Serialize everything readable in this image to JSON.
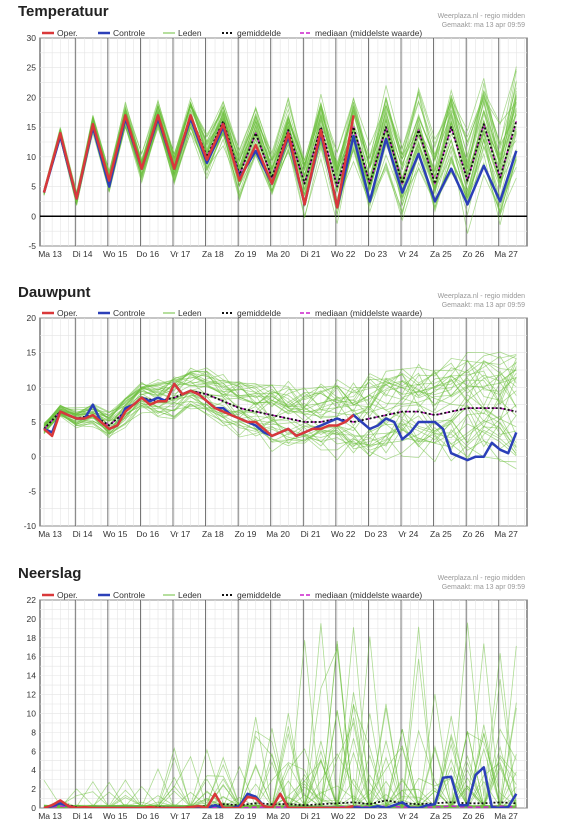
{
  "chart_data": [
    {
      "type": "line",
      "title": "Temperatuur",
      "credit": "Weerplaza.nl - regio midden",
      "created": "Gemaakt: ma 13 apr 09:59",
      "ylim": [
        -5,
        30
      ],
      "yticks": [
        -5,
        0,
        5,
        10,
        15,
        20,
        25,
        30
      ],
      "categories": [
        "Ma 13",
        "Di 14",
        "Wo 15",
        "Do 16",
        "Vr 17",
        "Za 18",
        "Zo 19",
        "Ma 20",
        "Di 21",
        "Wo 22",
        "Do 23",
        "Vr 24",
        "Za 25",
        "Zo 26",
        "Ma 27"
      ],
      "zero_line": true,
      "legend": [
        "Oper.",
        "Controle",
        "Leden",
        "gemiddelde",
        "mediaan (middelste waarde)"
      ],
      "colors": {
        "oper": "#d9383a",
        "controle": "#2b3fb8",
        "leden": "#6cbf3c",
        "mean": "#111111",
        "median": "#cc22cc"
      },
      "series": [
        {
          "name": "Oper.",
          "x": [
            0,
            0.5,
            1,
            1.5,
            2,
            2.5,
            3,
            3.5,
            4,
            4.5,
            5,
            5.5,
            6,
            6.5,
            7,
            7.5,
            8,
            8.5,
            9,
            9.5
          ],
          "values": [
            4,
            14,
            3,
            15.5,
            6,
            17,
            8,
            17,
            8,
            17,
            9.5,
            15.5,
            6,
            12,
            5.5,
            14,
            2,
            14.5,
            1.5,
            17
          ]
        },
        {
          "name": "Controle",
          "x": [
            0,
            0.5,
            1,
            1.5,
            2,
            2.5,
            3,
            3.5,
            4,
            4.5,
            5,
            5.5,
            6,
            6.5,
            7,
            7.5,
            8,
            8.5,
            9,
            9.5,
            10,
            10.5,
            11,
            11.5,
            12,
            12.5,
            13,
            13.5,
            14,
            14.5
          ],
          "values": [
            4,
            13.5,
            3,
            15,
            5,
            16.5,
            8,
            16.5,
            8,
            16.5,
            9,
            15,
            6.5,
            11,
            5.5,
            13.5,
            2,
            14,
            1.5,
            13.5,
            2.5,
            13,
            4,
            10.5,
            2.5,
            8,
            2,
            8.5,
            2.5,
            11
          ]
        },
        {
          "name": "gemiddelde",
          "x": [
            0,
            0.5,
            1,
            1.5,
            2,
            2.5,
            3,
            3.5,
            4,
            4.5,
            5,
            5.5,
            6,
            6.5,
            7,
            7.5,
            8,
            8.5,
            9,
            9.5,
            10,
            10.5,
            11,
            11.5,
            12,
            12.5,
            13,
            13.5,
            14,
            14.5
          ],
          "values": [
            4,
            14,
            3,
            15.5,
            6,
            17,
            8,
            17,
            8,
            17,
            10,
            16,
            7,
            14,
            6.5,
            14.5,
            5.5,
            15,
            5,
            15,
            5.5,
            15,
            5.5,
            14.5,
            5.5,
            15,
            6,
            15.5,
            6.5,
            16
          ]
        },
        {
          "name": "mediaan (middelste waarde)",
          "x": [
            0,
            0.5,
            1,
            1.5,
            2,
            2.5,
            3,
            3.5,
            4,
            4.5,
            5,
            5.5,
            6,
            6.5,
            7,
            7.5,
            8,
            8.5,
            9,
            9.5,
            10,
            10.5,
            11,
            11.5,
            12,
            12.5,
            13,
            13.5,
            14,
            14.5
          ],
          "values": [
            4,
            14,
            3,
            15.5,
            6,
            17,
            8,
            17,
            8,
            17,
            10,
            16,
            7,
            14,
            6.5,
            14.5,
            5.5,
            15,
            5,
            15,
            5.5,
            15,
            5.5,
            14.5,
            5.5,
            15,
            6,
            15.5,
            6.5,
            16
          ]
        }
      ]
    },
    {
      "type": "line",
      "title": "Dauwpunt",
      "credit": "Weerplaza.nl - regio midden",
      "created": "Gemaakt: ma 13 apr 09:59",
      "ylim": [
        -10,
        20
      ],
      "yticks": [
        -10,
        -5,
        0,
        5,
        10,
        15,
        20
      ],
      "categories": [
        "Ma 13",
        "Di 14",
        "Wo 15",
        "Do 16",
        "Vr 17",
        "Za 18",
        "Zo 19",
        "Ma 20",
        "Di 21",
        "Wo 22",
        "Do 23",
        "Vr 24",
        "Za 25",
        "Zo 26",
        "Ma 27"
      ],
      "zero_line": false,
      "legend": [
        "Oper.",
        "Controle",
        "Leden",
        "gemiddelde",
        "mediaan (middelste waarde)"
      ],
      "colors": {
        "oper": "#d9383a",
        "controle": "#2b3fb8",
        "leden": "#6cbf3c",
        "mean": "#111111",
        "median": "#cc22cc"
      },
      "series": [
        {
          "name": "Oper.",
          "x": [
            0,
            0.25,
            0.5,
            0.75,
            1,
            1.25,
            1.5,
            1.75,
            2,
            2.25,
            2.5,
            2.75,
            3,
            3.25,
            3.5,
            3.75,
            4,
            4.25,
            4.5,
            4.75,
            5,
            5.25,
            5.5,
            5.75,
            6,
            6.25,
            6.5,
            6.75,
            7,
            7.25,
            7.5,
            7.75,
            8,
            8.25,
            8.5,
            8.75,
            9,
            9.25,
            9.5
          ],
          "values": [
            4,
            3,
            6.5,
            6,
            5.5,
            5.5,
            6,
            5,
            4,
            4.5,
            6.5,
            7.5,
            8.5,
            7.5,
            8,
            8,
            10.5,
            9,
            9.5,
            9,
            8,
            7,
            6.5,
            6,
            5.5,
            5,
            5,
            4,
            3,
            3.5,
            4,
            3,
            3.5,
            4,
            4,
            4.5,
            4.5,
            5,
            6
          ]
        },
        {
          "name": "Controle",
          "x": [
            0,
            0.25,
            0.5,
            0.75,
            1,
            1.25,
            1.5,
            1.75,
            2,
            2.25,
            2.5,
            2.75,
            3,
            3.25,
            3.5,
            3.75,
            4,
            4.25,
            4.5,
            4.75,
            5,
            5.25,
            5.5,
            5.75,
            6,
            6.25,
            6.5,
            6.75,
            7,
            7.25,
            7.5,
            7.75,
            8,
            8.25,
            8.5,
            8.75,
            9,
            9.25,
            9.5,
            9.75,
            10,
            10.25,
            10.5,
            10.75,
            11,
            11.25,
            11.5,
            11.75,
            12,
            12.25,
            12.5,
            12.75,
            13,
            13.25,
            13.5,
            13.75,
            14,
            14.25,
            14.5
          ],
          "values": [
            4,
            3.5,
            6.5,
            6,
            5.5,
            5.5,
            7.5,
            5,
            4,
            4.5,
            7,
            7.5,
            8.5,
            8,
            8.5,
            8,
            10.5,
            9,
            9.5,
            9,
            8,
            7,
            7,
            6,
            5.5,
            5,
            4.5,
            3.5,
            3,
            3.5,
            4,
            3,
            3.5,
            4,
            4.5,
            5,
            5.5,
            5,
            6,
            5,
            4,
            4.5,
            5.5,
            5,
            2.5,
            3.5,
            5,
            5,
            5,
            4,
            0.5,
            0,
            -0.5,
            0,
            0,
            2,
            1,
            0.5,
            3.5
          ]
        },
        {
          "name": "gemiddelde",
          "x": [
            0,
            0.5,
            1,
            1.5,
            2,
            2.5,
            3,
            3.5,
            4,
            4.5,
            5,
            5.5,
            6,
            6.5,
            7,
            7.5,
            8,
            8.5,
            9,
            9.5,
            10,
            10.5,
            11,
            11.5,
            12,
            12.5,
            13,
            13.5,
            14,
            14.5
          ],
          "values": [
            4,
            6.5,
            5.5,
            6,
            4.5,
            6.5,
            8.5,
            8,
            8.5,
            9.5,
            9,
            8,
            7,
            6.5,
            6,
            5.5,
            5,
            5,
            5.5,
            5,
            5.5,
            6,
            6.5,
            6.5,
            6,
            6.5,
            7,
            7,
            7,
            6.5
          ]
        },
        {
          "name": "mediaan (middelste waarde)",
          "x": [
            0,
            0.5,
            1,
            1.5,
            2,
            2.5,
            3,
            3.5,
            4,
            4.5,
            5,
            5.5,
            6,
            6.5,
            7,
            7.5,
            8,
            8.5,
            9,
            9.5,
            10,
            10.5,
            11,
            11.5,
            12,
            12.5,
            13,
            13.5,
            14,
            14.5
          ],
          "values": [
            4,
            6.5,
            5.5,
            6,
            4.5,
            6.5,
            8.5,
            8,
            8.5,
            9.5,
            9,
            8,
            7,
            6.5,
            6,
            5.5,
            5,
            5,
            5.5,
            5,
            5.5,
            6,
            6.5,
            6.5,
            6,
            6.5,
            7,
            7,
            7,
            6.5
          ]
        }
      ]
    },
    {
      "type": "line",
      "title": "Neerslag",
      "credit": "Weerplaza.nl - regio midden",
      "created": "Gemaakt: ma 13 apr 09:59",
      "ylim": [
        0,
        22
      ],
      "yticks": [
        0,
        2,
        4,
        6,
        8,
        10,
        12,
        14,
        16,
        18,
        20,
        22
      ],
      "categories": [
        "Ma 13",
        "Di 14",
        "Wo 15",
        "Do 16",
        "Vr 17",
        "Za 18",
        "Zo 19",
        "Ma 20",
        "Di 21",
        "Wo 22",
        "Do 23",
        "Vr 24",
        "Za 25",
        "Zo 26",
        "Ma 27"
      ],
      "zero_line": false,
      "legend": [
        "Oper.",
        "Controle",
        "Leden",
        "gemiddelde",
        "mediaan (middelste waarde)"
      ],
      "colors": {
        "oper": "#d9383a",
        "controle": "#2b3fb8",
        "leden": "#6cbf3c",
        "mean": "#111111",
        "median": "#cc22cc"
      },
      "series": [
        {
          "name": "Oper.",
          "x": [
            0,
            0.25,
            0.5,
            0.75,
            1,
            1.25,
            1.5,
            1.75,
            2,
            2.25,
            2.5,
            2.75,
            3,
            3.25,
            3.5,
            3.75,
            4,
            4.25,
            4.5,
            4.75,
            5,
            5.25,
            5.5,
            5.75,
            6,
            6.25,
            6.5,
            6.75,
            7,
            7.25,
            7.5,
            7.75,
            8,
            8.25,
            8.5,
            8.75,
            9,
            9.25,
            9.5
          ],
          "values": [
            0,
            0.3,
            0.8,
            0.2,
            0,
            0.1,
            0,
            0,
            0,
            0,
            0,
            0,
            0,
            0.1,
            0,
            0,
            0,
            0,
            0.1,
            0.2,
            0,
            1.5,
            0,
            0,
            0,
            1.2,
            1,
            0.2,
            0,
            1.5,
            0,
            0,
            0,
            0,
            0,
            0,
            0,
            0,
            0.2
          ]
        },
        {
          "name": "Controle",
          "x": [
            0,
            0.25,
            0.5,
            0.75,
            1,
            1.25,
            1.5,
            1.75,
            2,
            2.25,
            2.5,
            2.75,
            3,
            3.25,
            3.5,
            3.75,
            4,
            4.25,
            4.5,
            4.75,
            5,
            5.25,
            5.5,
            5.75,
            6,
            6.25,
            6.5,
            6.75,
            7,
            7.25,
            7.5,
            7.75,
            8,
            8.25,
            8.5,
            8.75,
            9,
            9.25,
            9.5,
            9.75,
            10,
            10.25,
            10.5,
            10.75,
            11,
            11.25,
            11.5,
            11.75,
            12,
            12.25,
            12.5,
            12.75,
            13,
            13.25,
            13.5,
            13.75,
            14,
            14.25,
            14.5
          ],
          "values": [
            0,
            0.2,
            0.5,
            0.2,
            0,
            0,
            0,
            0,
            0,
            0,
            0,
            0,
            0,
            0,
            0,
            0,
            0,
            0,
            0.1,
            0.1,
            0,
            0.3,
            0,
            0,
            0.2,
            1.5,
            1.2,
            0.2,
            0,
            1.5,
            0,
            0,
            0,
            0,
            0,
            0,
            0,
            0,
            0.1,
            0,
            0,
            0.2,
            0,
            0.3,
            0.6,
            0,
            0,
            0.3,
            0.4,
            3.2,
            3.3,
            0.3,
            0.3,
            3.5,
            4.3,
            0.1,
            0,
            0.1,
            1.5
          ]
        },
        {
          "name": "gemiddelde",
          "x": [
            0,
            0.5,
            1,
            1.5,
            2,
            2.5,
            3,
            3.5,
            4,
            4.5,
            5,
            5.5,
            6,
            6.5,
            7,
            7.5,
            8,
            8.5,
            9,
            9.5,
            10,
            10.5,
            11,
            11.5,
            12,
            12.5,
            13,
            13.5,
            14,
            14.5
          ],
          "values": [
            0,
            0.5,
            0.1,
            0,
            0,
            0,
            0,
            0.1,
            0,
            0.1,
            0.2,
            0.4,
            0.3,
            0.5,
            0.4,
            0.4,
            0.3,
            0.4,
            0.5,
            0.6,
            0.4,
            0.8,
            0.5,
            0.4,
            0.5,
            0.6,
            0.5,
            0.5,
            0.6,
            0.5
          ]
        },
        {
          "name": "mediaan (middelste waarde)",
          "x": [
            0,
            0.5,
            1,
            1.5,
            2,
            2.5,
            3,
            3.5,
            4,
            4.5,
            5,
            5.5,
            6,
            6.5,
            7,
            7.5,
            8,
            8.5,
            9,
            9.5,
            10,
            10.5,
            11,
            11.5,
            12,
            12.5,
            13,
            13.5,
            14,
            14.5
          ],
          "values": [
            0,
            0.2,
            0,
            0,
            0,
            0,
            0,
            0,
            0,
            0,
            0,
            0.1,
            0,
            0.1,
            0.1,
            0.1,
            0,
            0.1,
            0.1,
            0.2,
            0.1,
            0.2,
            0.1,
            0.1,
            0.1,
            0.2,
            0.1,
            0.1,
            0.2,
            0.1
          ]
        }
      ]
    }
  ]
}
